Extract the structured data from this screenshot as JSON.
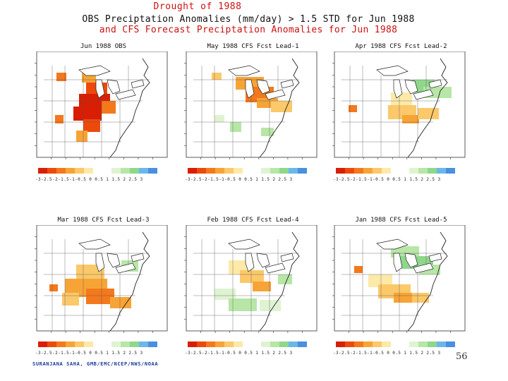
{
  "title": {
    "line1": "Drought of 1988",
    "line2": "OBS Preciptation Anomalies (mm/day) > 1.5 STD for Jun 1988",
    "line3": "and CFS Forecast Preciptation Anomalies for Jun 1988"
  },
  "panels": [
    {
      "title": "Jun 1988 OBS"
    },
    {
      "title": "May 1988 CFS Fcst Lead-1"
    },
    {
      "title": "Apr 1988 CFS Fcst Lead-2"
    },
    {
      "title": "Mar 1988 CFS Fcst Lead-3"
    },
    {
      "title": "Feb 1988 CFS Fcst Lead-4"
    },
    {
      "title": "Jan 1988 CFS Fcst Lead-5"
    }
  ],
  "colorbar": {
    "labels": "-3-2.5-2-1.5-1-0.5 0  0.5  1  1.5  2  2.5  3",
    "colors": [
      "#d81e05",
      "#ec4a0c",
      "#f4781c",
      "#f7a436",
      "#fbc86a",
      "#fde9a8",
      "#ffffff",
      "#ffffff",
      "#dff3d2",
      "#b7e6a6",
      "#8fd78a",
      "#6cb7ea",
      "#4a8fe0"
    ]
  },
  "footer": "SURANJANA SAHA, GMB/EMC/NCEP/NWS/NOAA",
  "page_number": "56"
}
